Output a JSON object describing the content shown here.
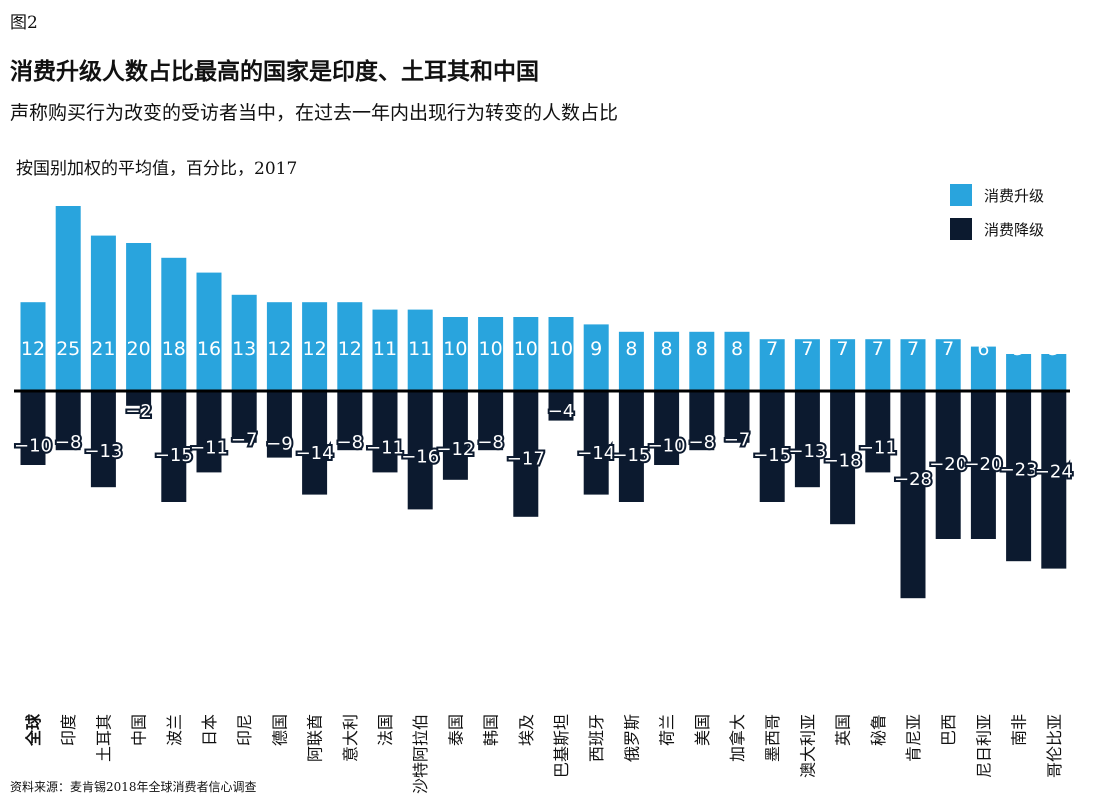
{
  "header": {
    "figure_label": "图2",
    "title": "消费升级人数占比最高的国家是印度、土耳其和中国",
    "subtitle": "声称购买行为改变的受访者当中，在过去一年内出现行为转变的人数占比",
    "unit_note": "按国别加权的平均值，百分比，2017"
  },
  "footer": {
    "source": "资料来源：麦肯锡2018年全球消费者信心调查"
  },
  "colors": {
    "upgrade": "#29a4dd",
    "downgrade": "#0c1a2f",
    "axis": "#000000"
  },
  "chart_data": {
    "type": "bar",
    "categories": [
      "全球",
      "印度",
      "土耳其",
      "中国",
      "波兰",
      "日本",
      "印尼",
      "德国",
      "阿联酋",
      "意大利",
      "法国",
      "沙特阿拉伯",
      "泰国",
      "韩国",
      "埃及",
      "巴基斯坦",
      "西班牙",
      "俄罗斯",
      "荷兰",
      "美国",
      "加拿大",
      "墨西哥",
      "澳大利亚",
      "英国",
      "秘鲁",
      "肯尼亚",
      "巴西",
      "尼日利亚",
      "南非",
      "哥伦比亚"
    ],
    "bold_categories": [
      "全球"
    ],
    "series": [
      {
        "name": "消费升级",
        "values": [
          12,
          25,
          21,
          20,
          18,
          16,
          13,
          12,
          12,
          12,
          11,
          11,
          10,
          10,
          10,
          10,
          9,
          8,
          8,
          8,
          8,
          7,
          7,
          7,
          7,
          7,
          7,
          6,
          5,
          5
        ]
      },
      {
        "name": "消费降级",
        "values": [
          -10,
          -8,
          -13,
          -2,
          -15,
          -11,
          -7,
          -9,
          -14,
          -8,
          -11,
          -16,
          -12,
          -8,
          -17,
          -4,
          -14,
          -15,
          -10,
          -8,
          -7,
          -15,
          -13,
          -18,
          -11,
          -28,
          -20,
          -20,
          -23,
          -24
        ]
      }
    ],
    "legend_position": "top-right",
    "grid": false
  }
}
